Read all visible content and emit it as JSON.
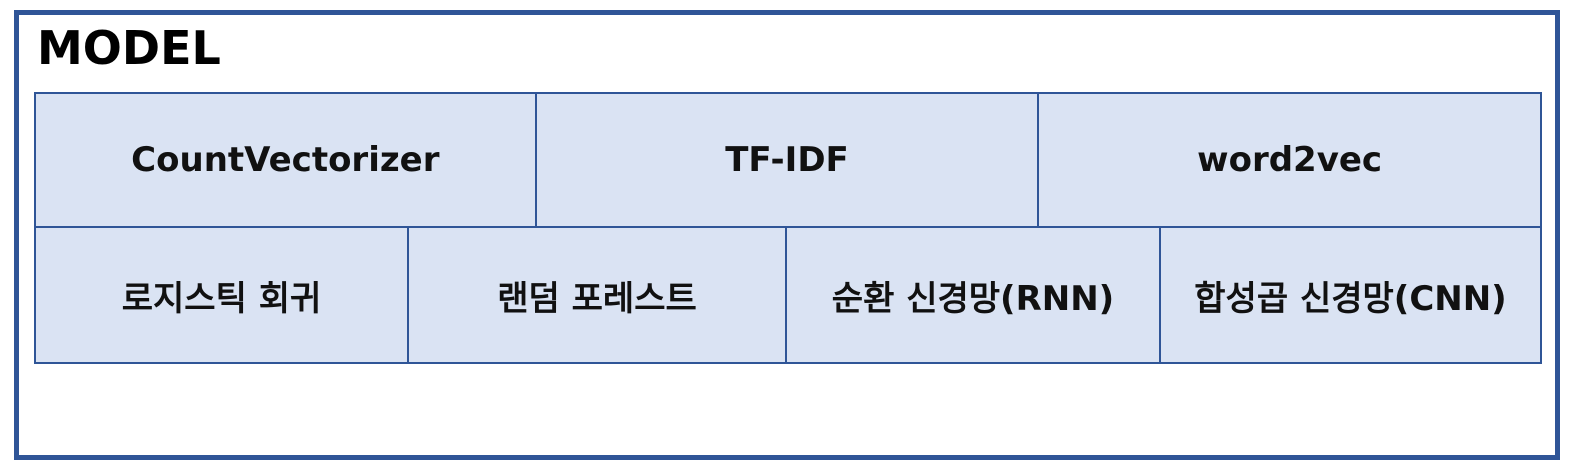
{
  "title": "MODEL",
  "colors": {
    "border": "#2f5597",
    "cell_fill": "#dae3f3",
    "text": "#111111"
  },
  "vectorizers": [
    {
      "label": "CountVectorizer"
    },
    {
      "label": "TF-IDF"
    },
    {
      "label": "word2vec"
    }
  ],
  "models": [
    {
      "label": "로지스틱 회귀"
    },
    {
      "label": "랜덤 포레스트"
    },
    {
      "label": "순환 신경망(RNN)"
    },
    {
      "label": "합성곱 신경망(CNN)"
    }
  ]
}
